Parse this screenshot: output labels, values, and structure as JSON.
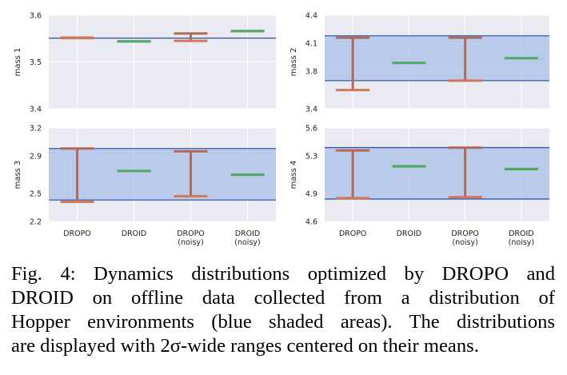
{
  "colors": {
    "panel_bg": "#eaeaf2",
    "grid": "#ffffff",
    "band_fill": "#a9bfe8",
    "band_line": "#3a5aa8",
    "dropo": "#b06a5a",
    "dropo_cap": "#d07858",
    "droid": "#55a868",
    "text": "#222222"
  },
  "chart_data": [
    {
      "type": "errorbar",
      "ylabel": "mass 1",
      "ylim": [
        3.4,
        3.6
      ],
      "yticks": [
        "3.4",
        "3.5",
        "3.6"
      ],
      "ytick_values": [
        3.4,
        3.5,
        3.6
      ],
      "band": null,
      "reference_line": 3.551,
      "categories": [
        "DROPO",
        "DROID",
        "DROPO\n(noisy)",
        "DROID\n(noisy)"
      ],
      "series": [
        {
          "name": "DROPO",
          "type": "dropo",
          "low": 3.551,
          "high": 3.552
        },
        {
          "name": "DROID",
          "type": "droid",
          "value": 3.544
        },
        {
          "name": "DROPO (noisy)",
          "type": "dropo",
          "low": 3.545,
          "high": 3.561
        },
        {
          "name": "DROID (noisy)",
          "type": "droid",
          "value": 3.566
        }
      ]
    },
    {
      "type": "errorbar",
      "ylabel": "mass 2",
      "ylim": [
        3.4,
        4.4
      ],
      "yticks": [
        "3.4",
        "3.8",
        "4.1",
        "4.4"
      ],
      "ytick_values": [
        3.4,
        3.8,
        4.1,
        4.4
      ],
      "band": [
        3.7,
        4.18
      ],
      "categories": [
        "DROPO",
        "DROID",
        "DROPO\n(noisy)",
        "DROID\n(noisy)"
      ],
      "series": [
        {
          "name": "DROPO",
          "type": "dropo",
          "low": 3.6,
          "high": 4.16
        },
        {
          "name": "DROID",
          "type": "droid",
          "value": 3.89
        },
        {
          "name": "DROPO (noisy)",
          "type": "dropo",
          "low": 3.7,
          "high": 4.16
        },
        {
          "name": "DROID (noisy)",
          "type": "droid",
          "value": 3.94
        }
      ]
    },
    {
      "type": "errorbar",
      "ylabel": "mass 3",
      "ylim": [
        2.2,
        3.2
      ],
      "yticks": [
        "2.2",
        "2.5",
        "2.9",
        "3.2"
      ],
      "ytick_values": [
        2.2,
        2.5,
        2.9,
        3.2
      ],
      "band": [
        2.43,
        2.98
      ],
      "categories": [
        "DROPO",
        "DROID",
        "DROPO\n(noisy)",
        "DROID\n(noisy)"
      ],
      "series": [
        {
          "name": "DROPO",
          "type": "dropo",
          "low": 2.41,
          "high": 2.98
        },
        {
          "name": "DROID",
          "type": "droid",
          "value": 2.74
        },
        {
          "name": "DROPO (noisy)",
          "type": "dropo",
          "low": 2.47,
          "high": 2.95
        },
        {
          "name": "DROID (noisy)",
          "type": "droid",
          "value": 2.7
        }
      ]
    },
    {
      "type": "errorbar",
      "ylabel": "mass 4",
      "ylim": [
        4.6,
        5.6
      ],
      "yticks": [
        "4.6",
        "4.9",
        "5.3",
        "5.6"
      ],
      "ytick_values": [
        4.6,
        4.9,
        5.3,
        5.6
      ],
      "band": [
        4.84,
        5.39
      ],
      "categories": [
        "DROPO",
        "DROID",
        "DROPO\n(noisy)",
        "DROID\n(noisy)"
      ],
      "series": [
        {
          "name": "DROPO",
          "type": "dropo",
          "low": 4.85,
          "high": 5.36
        },
        {
          "name": "DROID",
          "type": "droid",
          "value": 5.19
        },
        {
          "name": "DROPO (noisy)",
          "type": "dropo",
          "low": 4.86,
          "high": 5.39
        },
        {
          "name": "DROID (noisy)",
          "type": "droid",
          "value": 5.16
        }
      ]
    }
  ],
  "caption_lines": [
    "Fig. 4: Dynamics distributions optimized by DROPO and",
    "DROID on offline data collected from a distribution of",
    "Hopper environments (blue shaded areas). The distributions",
    "are displayed with 2σ-wide ranges centered on their means."
  ]
}
